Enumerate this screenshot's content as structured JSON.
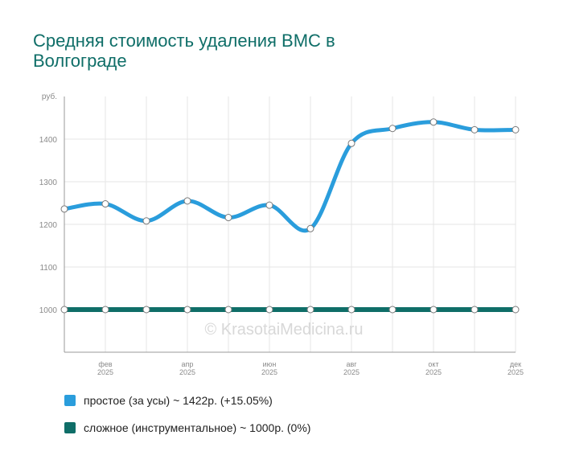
{
  "chart_data": {
    "type": "line",
    "title": "Средняя стоимость удаления ВМС в Волгограде",
    "ylabel": "руб.",
    "ylim": [
      900,
      1500
    ],
    "yticks": [
      1000,
      1100,
      1200,
      1300,
      1400
    ],
    "x_ticks": [
      {
        "index": 1,
        "month": "фев",
        "year": "2025"
      },
      {
        "index": 3,
        "month": "апр",
        "year": "2025"
      },
      {
        "index": 5,
        "month": "июн",
        "year": "2025"
      },
      {
        "index": 7,
        "month": "авг",
        "year": "2025"
      },
      {
        "index": 9,
        "month": "окт",
        "year": "2025"
      },
      {
        "index": 11,
        "month": "дек",
        "year": "2025"
      }
    ],
    "grid": true,
    "watermark": "© KrasotaiMedicina.ru",
    "series": [
      {
        "name": "простое (за усы)",
        "color": "#2a9ddc",
        "values": [
          1236,
          1248,
          1208,
          1255,
          1216,
          1245,
          1190,
          1390,
          1425,
          1440,
          1422,
          1422
        ]
      },
      {
        "name": "сложное (инструментальное)",
        "color": "#0f6e68",
        "values": [
          1000,
          1000,
          1000,
          1000,
          1000,
          1000,
          1000,
          1000,
          1000,
          1000,
          1000,
          1000
        ]
      }
    ]
  },
  "legend": [
    {
      "label": "простое (за усы) ~ 1422р. (+15.05%)",
      "color": "#2a9ddc"
    },
    {
      "label": "сложное (инструментальное) ~ 1000р. (0%)",
      "color": "#0f6e68"
    }
  ]
}
